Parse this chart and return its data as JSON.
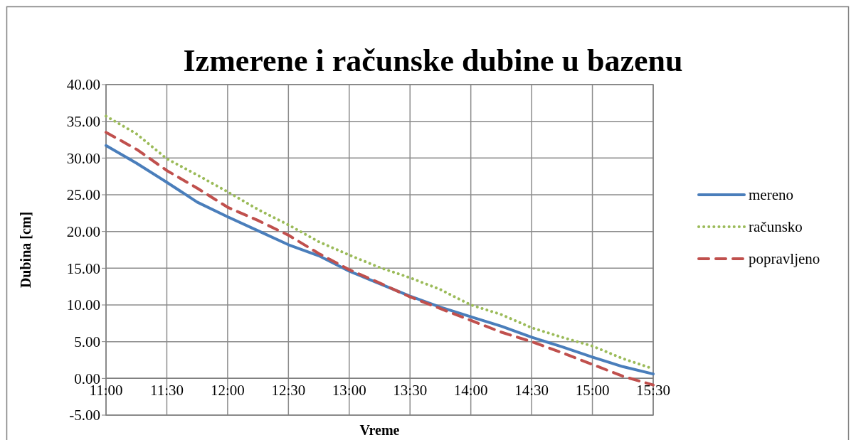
{
  "chart_data": {
    "type": "line",
    "title": "Izmerene i računske dubine u bazenu",
    "xlabel": "Vreme",
    "ylabel": "Dubina [cm]",
    "x": [
      11,
      11.25,
      11.5,
      11.75,
      12,
      12.25,
      12.5,
      12.75,
      13,
      13.25,
      13.5,
      13.75,
      14,
      14.25,
      14.5,
      14.75,
      15,
      15.25,
      15.5
    ],
    "series": [
      {
        "name": "mereno",
        "color": "#4a7ebb",
        "line_style": "solid",
        "values": [
          31.7,
          29.3,
          26.7,
          24.0,
          22.0,
          20.1,
          18.2,
          16.7,
          14.6,
          12.9,
          11.2,
          9.7,
          8.4,
          7.1,
          5.6,
          4.3,
          2.9,
          1.6,
          0.6
        ]
      },
      {
        "name": "računsko",
        "color": "#9bbb59",
        "line_style": "dotted",
        "values": [
          35.7,
          33.3,
          29.9,
          27.7,
          25.4,
          23.0,
          20.9,
          18.6,
          16.8,
          15.1,
          13.7,
          12.1,
          10.0,
          8.7,
          6.9,
          5.6,
          4.4,
          2.7,
          1.3
        ]
      },
      {
        "name": "popravljeno",
        "color": "#c0504d",
        "line_style": "dashed",
        "values": [
          33.5,
          31.2,
          28.3,
          25.9,
          23.3,
          21.5,
          19.5,
          17.0,
          14.8,
          13.0,
          11.1,
          9.5,
          7.9,
          6.3,
          5.0,
          3.5,
          1.9,
          0.3,
          -0.9
        ]
      }
    ],
    "xlim": [
      11,
      15.5
    ],
    "xticks": [
      {
        "value": 11,
        "label": "11:00"
      },
      {
        "value": 11.5,
        "label": "11:30"
      },
      {
        "value": 12,
        "label": "12:00"
      },
      {
        "value": 12.5,
        "label": "12:30"
      },
      {
        "value": 13,
        "label": "13:00"
      },
      {
        "value": 13.5,
        "label": "13:30"
      },
      {
        "value": 14,
        "label": "14:00"
      },
      {
        "value": 14.5,
        "label": "14:30"
      },
      {
        "value": 15,
        "label": "15:00"
      },
      {
        "value": 15.5,
        "label": "15:30"
      }
    ],
    "ylim": [
      -5,
      40
    ],
    "yticks": [
      {
        "value": -5,
        "label": "-5.00"
      },
      {
        "value": 0,
        "label": "0.00"
      },
      {
        "value": 5,
        "label": "5.00"
      },
      {
        "value": 10,
        "label": "10.00"
      },
      {
        "value": 15,
        "label": "15.00"
      },
      {
        "value": 20,
        "label": "20.00"
      },
      {
        "value": 25,
        "label": "25.00"
      },
      {
        "value": 30,
        "label": "30.00"
      },
      {
        "value": 35,
        "label": "35.00"
      },
      {
        "value": 40,
        "label": "40.00"
      }
    ],
    "grid": true,
    "legend": "right"
  }
}
